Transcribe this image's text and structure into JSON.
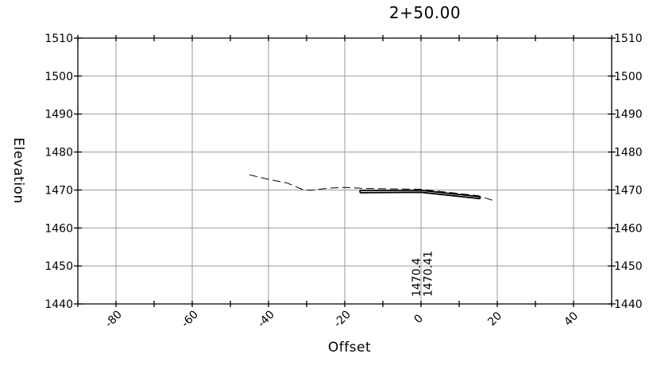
{
  "chart_data": {
    "type": "line",
    "title": "2+50.00",
    "xlabel": "Offset",
    "ylabel": "Elevation",
    "xlim": [
      -90,
      50
    ],
    "ylim": [
      1440,
      1510
    ],
    "x_ticks": [
      -80,
      -60,
      -40,
      -20,
      0,
      20,
      40
    ],
    "y_ticks": [
      1440,
      1450,
      1460,
      1470,
      1480,
      1490,
      1500,
      1510
    ],
    "grid": true,
    "series": [
      {
        "style": "dashed",
        "x": [
          -45,
          -40,
          -35,
          -31,
          -29,
          -24,
          -20,
          -15,
          0,
          15,
          19
        ],
        "y": [
          1474,
          1472.8,
          1471.8,
          1470.1,
          1469.9,
          1470.5,
          1470.7,
          1470.4,
          1470.2,
          1468.5,
          1467.2
        ]
      },
      {
        "style": "thick",
        "x": [
          -16,
          0,
          15.5
        ],
        "y": [
          1469.9,
          1469.9,
          1468.2
        ]
      },
      {
        "style": "thick",
        "x": [
          -16,
          0,
          15.5
        ],
        "y": [
          1469.3,
          1469.4,
          1467.7
        ]
      }
    ],
    "annotations": [
      {
        "text": "1470.4",
        "x": -1.2
      },
      {
        "text": "1470.41",
        "x": 1.8
      }
    ]
  }
}
